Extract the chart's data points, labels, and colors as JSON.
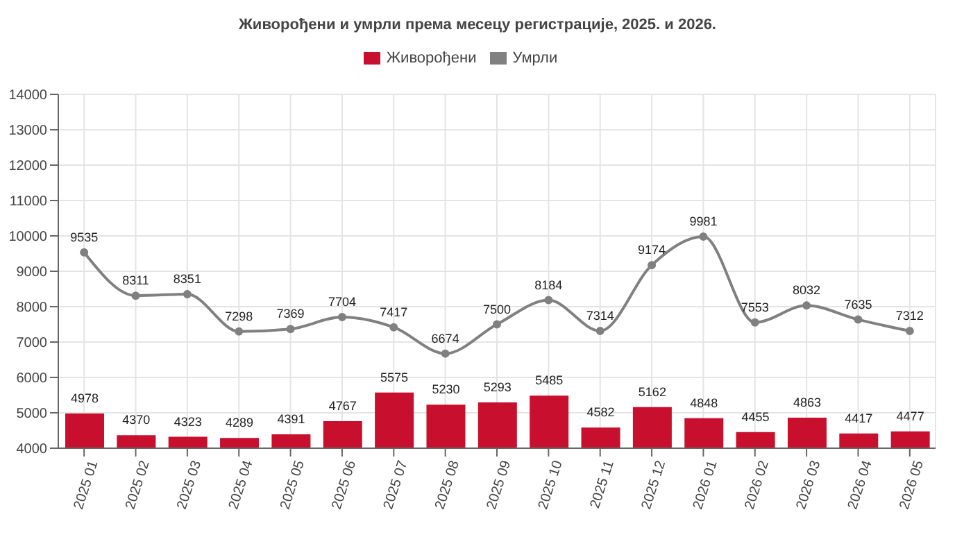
{
  "chart_data": {
    "type": "bar",
    "title": "Живорођени и умрли  према месецу регистрације, 2025. и 2026.",
    "categories": [
      "2025 01",
      "2025 02",
      "2025 03",
      "2025 04",
      "2025 05",
      "2025 06",
      "2025 07",
      "2025 08",
      "2025 09",
      "2025 10",
      "2025 11",
      "2025 12",
      "2026 01",
      "2026 02",
      "2026 03",
      "2026 04",
      "2026 05"
    ],
    "series": [
      {
        "name": "Умрли",
        "type": "line",
        "color": "#808080",
        "values": [
          9535,
          8311,
          8351,
          7298,
          7369,
          7704,
          7417,
          6674,
          7500,
          8184,
          7314,
          9174,
          9981,
          7553,
          8032,
          7635,
          7312
        ]
      },
      {
        "name": "Живорођени",
        "color": "#c8102e",
        "values": [
          4978,
          4370,
          4323,
          4289,
          4391,
          4767,
          5575,
          5230,
          5293,
          5485,
          4582,
          5162,
          4848,
          4455,
          4863,
          4417,
          4477
        ]
      }
    ],
    "ylim": [
      4000,
      14000
    ],
    "yticks": [
      4000,
      5000,
      6000,
      7000,
      8000,
      9000,
      10000,
      11000,
      12000,
      13000,
      14000
    ],
    "grid": true,
    "legend": "top",
    "marker": "circle",
    "line_style": "solid",
    "data_labels": true
  }
}
